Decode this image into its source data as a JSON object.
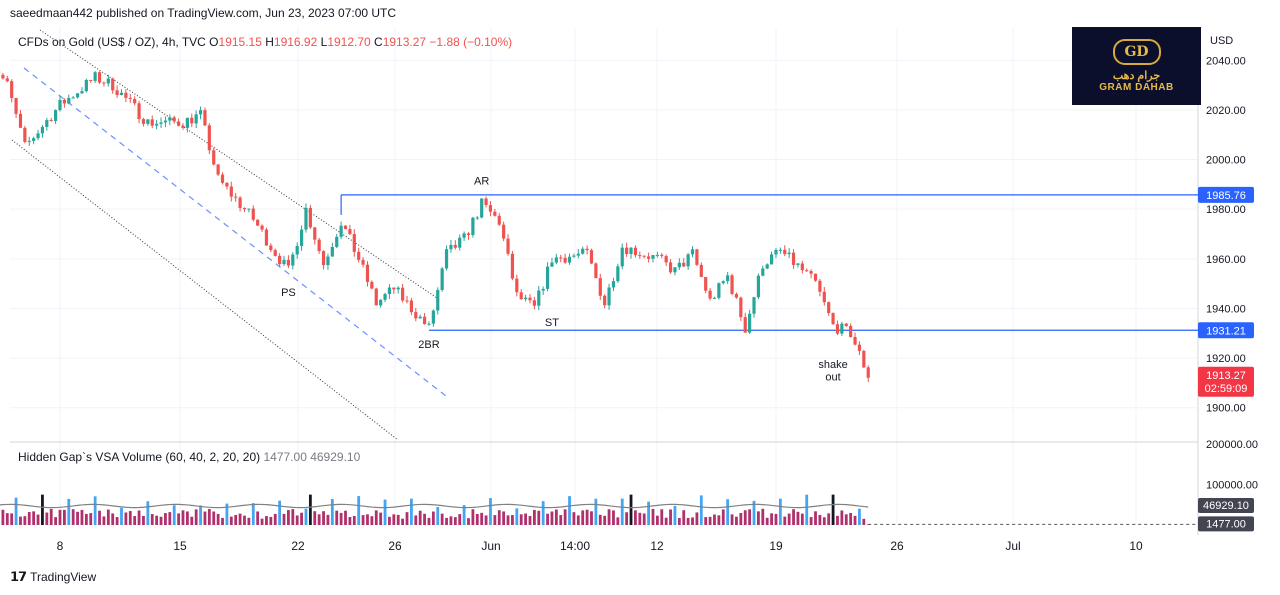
{
  "header": {
    "published": "saeedmaan442 published on TradingView.com, Jun 23, 2023 07:00 UTC"
  },
  "footer": {
    "logo": "TradingView"
  },
  "brand": {
    "monogram": "GD",
    "arabic": "جرام دهب",
    "english": "GRAM DAHAB"
  },
  "colors": {
    "up": "#26a69a",
    "down": "#ef5350",
    "level": "#2962ff",
    "price_bg": "#f23645",
    "volume_up": "#42a5f5",
    "volume_down": "#b0306b",
    "volume_ma": "#808080"
  },
  "chart_data": {
    "type": "candlestick",
    "symbol_legend": "CFDs on Gold (US$ / OZ), 4h, TVC",
    "ohlc_legend": {
      "o_label": "O",
      "o": "1915.15",
      "h_label": "H",
      "h": "1916.92",
      "l_label": "L",
      "l": "1912.70",
      "c_label": "C",
      "c": "1913.27",
      "change": "−1.88 (−0.10%)"
    },
    "currency": "USD",
    "y_ticks": [
      "2040.00",
      "2020.00",
      "2000.00",
      "1980.00",
      "1960.00",
      "1940.00",
      "1920.00",
      "1900.00"
    ],
    "ylim": [
      1887,
      2053
    ],
    "x_ticks": [
      "8",
      "15",
      "22",
      "26",
      "Jun",
      "14:00",
      "12",
      "19",
      "26",
      "Jul",
      "10"
    ],
    "price_path": [
      {
        "x": "May 4",
        "y": 2040
      },
      {
        "x": "May 5",
        "y": 2030
      },
      {
        "x": "May 6",
        "y": 2005
      },
      {
        "x": "May 8",
        "y": 2022
      },
      {
        "x": "May 10",
        "y": 2033
      },
      {
        "x": "May 11",
        "y": 2030
      },
      {
        "x": "May 13",
        "y": 2015
      },
      {
        "x": "May 15",
        "y": 2015
      },
      {
        "x": "May 16",
        "y": 2018
      },
      {
        "x": "May 17",
        "y": 1992
      },
      {
        "x": "May 19",
        "y": 1976
      },
      {
        "x": "May 20",
        "y": 1965
      },
      {
        "x": "May 21",
        "y": 1955
      },
      {
        "x": "May 22",
        "y": 1980
      },
      {
        "x": "May 23",
        "y": 1958
      },
      {
        "x": "May 24",
        "y": 1975
      },
      {
        "x": "May 25",
        "y": 1960
      },
      {
        "x": "May 26",
        "y": 1942
      },
      {
        "x": "May 27",
        "y": 1948
      },
      {
        "x": "May 28",
        "y": 1940
      },
      {
        "x": "May 29",
        "y": 1932
      },
      {
        "x": "May 30",
        "y": 1962
      },
      {
        "x": "May 31",
        "y": 1968
      },
      {
        "x": "Jun 1",
        "y": 1982
      },
      {
        "x": "Jun 2",
        "y": 1975
      },
      {
        "x": "Jun 3",
        "y": 1945
      },
      {
        "x": "Jun 4",
        "y": 1940
      },
      {
        "x": "Jun 5",
        "y": 1960
      },
      {
        "x": "Jun 7",
        "y": 1962
      },
      {
        "x": "Jun 8",
        "y": 1942
      },
      {
        "x": "Jun 9",
        "y": 1965
      },
      {
        "x": "Jun 11",
        "y": 1960
      },
      {
        "x": "Jun 12",
        "y": 1955
      },
      {
        "x": "Jun 13",
        "y": 1962
      },
      {
        "x": "Jun 14",
        "y": 1943
      },
      {
        "x": "Jun 15",
        "y": 1953
      },
      {
        "x": "Jun 16",
        "y": 1932
      },
      {
        "x": "Jun 17",
        "y": 1958
      },
      {
        "x": "Jun 18",
        "y": 1963
      },
      {
        "x": "Jun 19",
        "y": 1957
      },
      {
        "x": "Jun 20",
        "y": 1950
      },
      {
        "x": "Jun 21",
        "y": 1933
      },
      {
        "x": "Jun 22",
        "y": 1930
      },
      {
        "x": "Jun 23",
        "y": 1913
      }
    ],
    "levels": [
      {
        "name": "resistance",
        "value": 1985.76,
        "label": "1985.76",
        "from": "May 24"
      },
      {
        "name": "support",
        "value": 1931.21,
        "label": "1931.21",
        "from": "May 29"
      }
    ],
    "last_price": {
      "value": 1913.27,
      "label": "1913.27",
      "countdown": "02:59:09"
    },
    "annotations": [
      {
        "text": "PS",
        "x": "May 21",
        "y": 1945
      },
      {
        "text": "AR",
        "x": "Jun 1",
        "y": 1990
      },
      {
        "text": "2BR",
        "x": "May 29",
        "y": 1924
      },
      {
        "text": "ST",
        "x": "Jun 5",
        "y": 1933
      },
      {
        "text": "shake",
        "x": "Jun 21",
        "y": 1916
      },
      {
        "text": "out",
        "x": "Jun 21",
        "y": 1911
      }
    ],
    "channel_lines": [
      "upper",
      "middle",
      "lower"
    ],
    "volume_panel": {
      "legend_name": "Hidden Gap`s VSA Volume (60, 40, 2, 20, 20)",
      "value_1": "1477.00",
      "value_2": "46929.10",
      "y_ticks": [
        "200000.00",
        "100000.00"
      ],
      "ylim": [
        0,
        200000
      ],
      "volume_ma": 46929.1,
      "last_volume": 1477,
      "badge_ma": "46929.10",
      "badge_last": "1477.00"
    }
  }
}
